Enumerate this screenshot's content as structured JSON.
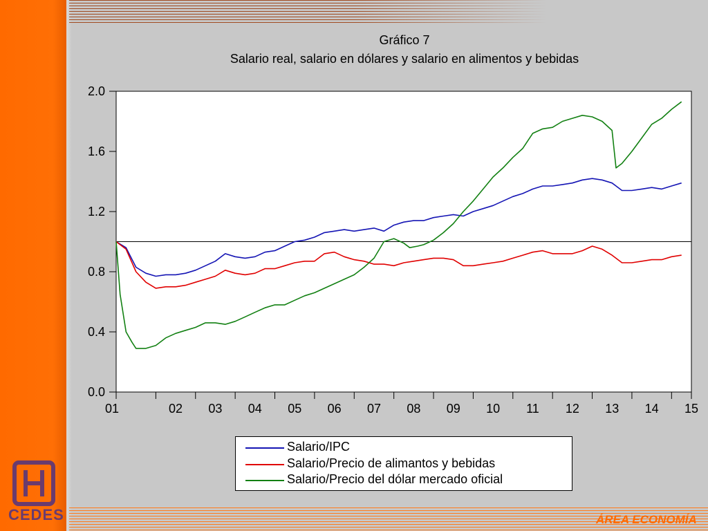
{
  "branding": {
    "logo_text": "CEDES",
    "area_label": "ÁREA ECONOMÍA",
    "accent_color": "#ff6a00",
    "logo_color": "#6a3b6e"
  },
  "chart_data": {
    "type": "line",
    "title": "Gráfico 7",
    "subtitle": "Salario real, salario en dólares y salario en alimentos y bebidas",
    "xlabel": "",
    "ylabel": "",
    "ylim": [
      0.0,
      2.0
    ],
    "yticks": [
      "0.0",
      "0.4",
      "0.8",
      "1.2",
      "1.6",
      "2.0"
    ],
    "xticks": [
      "01",
      "02",
      "03",
      "04",
      "05",
      "06",
      "07",
      "08",
      "09",
      "10",
      "11",
      "12",
      "13",
      "14",
      "15"
    ],
    "xlim": [
      2001.0,
      2015.5
    ],
    "reference_line": 1.0,
    "grid": false,
    "legend_position": "bottom",
    "series": [
      {
        "name": "Salario/IPC",
        "color": "#1414b4",
        "x": [
          2001.0,
          2001.25,
          2001.5,
          2001.75,
          2002.0,
          2002.25,
          2002.5,
          2002.75,
          2003.0,
          2003.25,
          2003.5,
          2003.75,
          2004.0,
          2004.25,
          2004.5,
          2004.75,
          2005.0,
          2005.25,
          2005.5,
          2005.75,
          2006.0,
          2006.25,
          2006.5,
          2006.75,
          2007.0,
          2007.25,
          2007.5,
          2007.75,
          2008.0,
          2008.25,
          2008.5,
          2008.75,
          2009.0,
          2009.25,
          2009.5,
          2009.75,
          2010.0,
          2010.25,
          2010.5,
          2010.75,
          2011.0,
          2011.25,
          2011.5,
          2011.75,
          2012.0,
          2012.25,
          2012.5,
          2012.75,
          2013.0,
          2013.25,
          2013.5,
          2013.75,
          2014.0,
          2014.25,
          2014.5,
          2014.75,
          2015.0,
          2015.25
        ],
        "values": [
          1.0,
          0.96,
          0.83,
          0.79,
          0.77,
          0.78,
          0.78,
          0.79,
          0.81,
          0.84,
          0.87,
          0.92,
          0.9,
          0.89,
          0.9,
          0.93,
          0.94,
          0.97,
          1.0,
          1.01,
          1.03,
          1.06,
          1.07,
          1.08,
          1.07,
          1.08,
          1.09,
          1.07,
          1.11,
          1.13,
          1.14,
          1.14,
          1.16,
          1.17,
          1.18,
          1.17,
          1.2,
          1.22,
          1.24,
          1.27,
          1.3,
          1.32,
          1.35,
          1.37,
          1.37,
          1.38,
          1.39,
          1.41,
          1.42,
          1.41,
          1.39,
          1.34,
          1.34,
          1.35,
          1.36,
          1.35,
          1.37,
          1.39
        ]
      },
      {
        "name": "Salario/Precio de alimantos y bebidas",
        "color": "#e00000",
        "x": [
          2001.0,
          2001.25,
          2001.5,
          2001.75,
          2002.0,
          2002.25,
          2002.5,
          2002.75,
          2003.0,
          2003.25,
          2003.5,
          2003.75,
          2004.0,
          2004.25,
          2004.5,
          2004.75,
          2005.0,
          2005.25,
          2005.5,
          2005.75,
          2006.0,
          2006.25,
          2006.5,
          2006.75,
          2007.0,
          2007.25,
          2007.5,
          2007.75,
          2008.0,
          2008.25,
          2008.5,
          2008.75,
          2009.0,
          2009.25,
          2009.5,
          2009.75,
          2010.0,
          2010.25,
          2010.5,
          2010.75,
          2011.0,
          2011.25,
          2011.5,
          2011.75,
          2012.0,
          2012.25,
          2012.5,
          2012.75,
          2013.0,
          2013.25,
          2013.5,
          2013.75,
          2014.0,
          2014.25,
          2014.5,
          2014.75,
          2015.0,
          2015.25
        ],
        "values": [
          1.0,
          0.95,
          0.8,
          0.73,
          0.69,
          0.7,
          0.7,
          0.71,
          0.73,
          0.75,
          0.77,
          0.81,
          0.79,
          0.78,
          0.79,
          0.82,
          0.82,
          0.84,
          0.86,
          0.87,
          0.87,
          0.92,
          0.93,
          0.9,
          0.88,
          0.87,
          0.85,
          0.85,
          0.84,
          0.86,
          0.87,
          0.88,
          0.89,
          0.89,
          0.88,
          0.84,
          0.84,
          0.85,
          0.86,
          0.87,
          0.89,
          0.91,
          0.93,
          0.94,
          0.92,
          0.92,
          0.92,
          0.94,
          0.97,
          0.95,
          0.91,
          0.86,
          0.86,
          0.87,
          0.88,
          0.88,
          0.9,
          0.91
        ]
      },
      {
        "name": "Salario/Precio del dólar mercado oficial",
        "color": "#128012",
        "x": [
          2001.0,
          2001.1,
          2001.25,
          2001.4,
          2001.5,
          2001.75,
          2002.0,
          2002.25,
          2002.5,
          2002.75,
          2003.0,
          2003.25,
          2003.5,
          2003.75,
          2004.0,
          2004.25,
          2004.5,
          2004.75,
          2005.0,
          2005.25,
          2005.5,
          2005.75,
          2006.0,
          2006.25,
          2006.5,
          2006.75,
          2007.0,
          2007.25,
          2007.5,
          2007.75,
          2008.0,
          2008.25,
          2008.4,
          2008.6,
          2008.75,
          2009.0,
          2009.25,
          2009.5,
          2009.75,
          2010.0,
          2010.25,
          2010.5,
          2010.75,
          2011.0,
          2011.25,
          2011.5,
          2011.75,
          2012.0,
          2012.25,
          2012.5,
          2012.75,
          2013.0,
          2013.25,
          2013.5,
          2013.6,
          2013.75,
          2014.0,
          2014.25,
          2014.5,
          2014.75,
          2015.0,
          2015.25
        ],
        "values": [
          1.0,
          0.65,
          0.4,
          0.33,
          0.29,
          0.29,
          0.31,
          0.36,
          0.39,
          0.41,
          0.43,
          0.46,
          0.46,
          0.45,
          0.47,
          0.5,
          0.53,
          0.56,
          0.58,
          0.58,
          0.61,
          0.64,
          0.66,
          0.69,
          0.72,
          0.75,
          0.78,
          0.83,
          0.89,
          1.0,
          1.02,
          0.99,
          0.96,
          0.97,
          0.98,
          1.01,
          1.06,
          1.12,
          1.2,
          1.27,
          1.35,
          1.43,
          1.49,
          1.56,
          1.62,
          1.72,
          1.75,
          1.76,
          1.8,
          1.82,
          1.84,
          1.83,
          1.8,
          1.74,
          1.49,
          1.52,
          1.6,
          1.69,
          1.78,
          1.82,
          1.88,
          1.93
        ]
      }
    ]
  }
}
